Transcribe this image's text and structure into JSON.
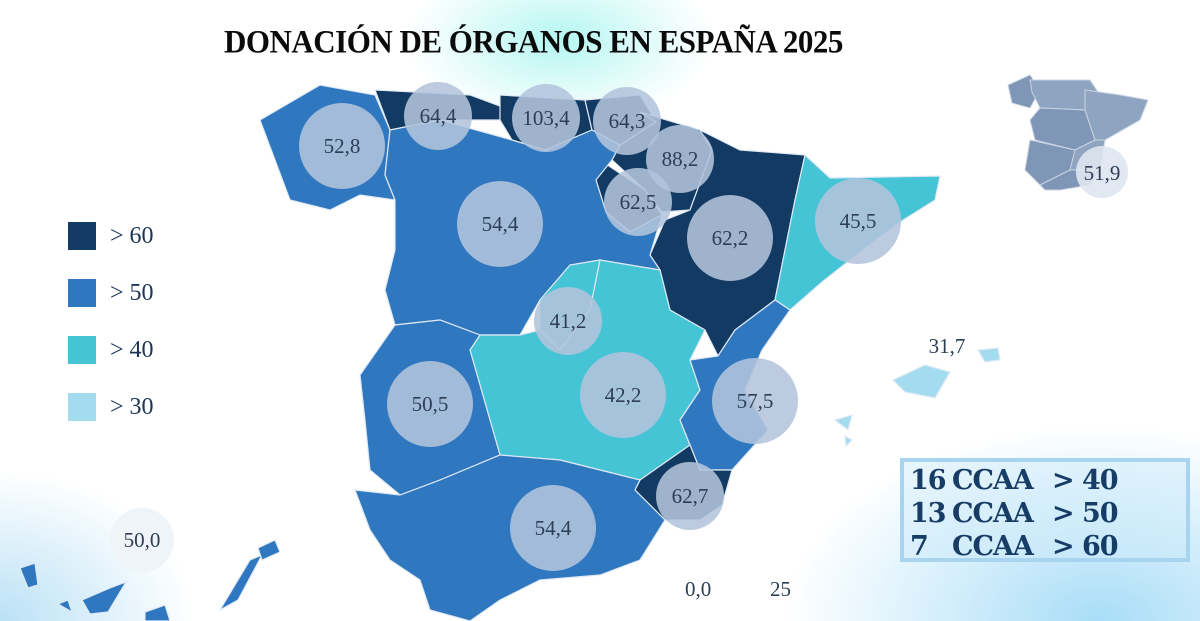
{
  "title": "DONACIÓN DE ÓRGANOS EN ESPAÑA 2025",
  "colors": {
    "gt60": "#133a63",
    "gt50": "#2f78c0",
    "gt40": "#45c4d6",
    "gt30": "#a4dcef",
    "bubble": "#b3c4dc",
    "inset": "#8fa4c0"
  },
  "legend": [
    {
      "label": "> 60",
      "color": "#133a63"
    },
    {
      "label": "> 50",
      "color": "#2f78c0"
    },
    {
      "label": "> 40",
      "color": "#45c4d6"
    },
    {
      "label": "> 30",
      "color": "#a4dcef"
    }
  ],
  "regions": [
    {
      "id": "galicia",
      "value": "52,8",
      "class": "gt50"
    },
    {
      "id": "asturias",
      "value": "64,4",
      "class": "gt60"
    },
    {
      "id": "cantabria",
      "value": "103,4",
      "class": "gt60"
    },
    {
      "id": "pais-vasco",
      "value": "64,3",
      "class": "gt60"
    },
    {
      "id": "navarra",
      "value": "88,2",
      "class": "gt60"
    },
    {
      "id": "la-rioja",
      "value": "62,5",
      "class": "gt60"
    },
    {
      "id": "aragon",
      "value": "62,2",
      "class": "gt60"
    },
    {
      "id": "cataluna",
      "value": "45,5",
      "class": "gt40"
    },
    {
      "id": "castilla-y-leon",
      "value": "54,4",
      "class": "gt50"
    },
    {
      "id": "madrid",
      "value": "41,2",
      "class": "gt40"
    },
    {
      "id": "castilla-la-mancha",
      "value": "42,2",
      "class": "gt40"
    },
    {
      "id": "extremadura",
      "value": "50,5",
      "class": "gt50"
    },
    {
      "id": "comunidad-valenciana",
      "value": "57,5",
      "class": "gt50"
    },
    {
      "id": "murcia",
      "value": "62,7",
      "class": "gt60"
    },
    {
      "id": "andalucia",
      "value": "54,4",
      "class": "gt50"
    },
    {
      "id": "baleares",
      "value": "31,7",
      "class": "gt30"
    },
    {
      "id": "canarias",
      "value": "50,0",
      "class": "gt50"
    }
  ],
  "ceuta": "0,0",
  "melilla": "25",
  "spain_total": "51,9",
  "stats": [
    {
      "count": "16",
      "unit": "CCAA",
      "threshold": "> 40"
    },
    {
      "count": "13",
      "unit": "CCAA",
      "threshold": "> 50"
    },
    {
      "count": "7",
      "unit": "CCAA",
      "threshold": "> 60"
    }
  ]
}
